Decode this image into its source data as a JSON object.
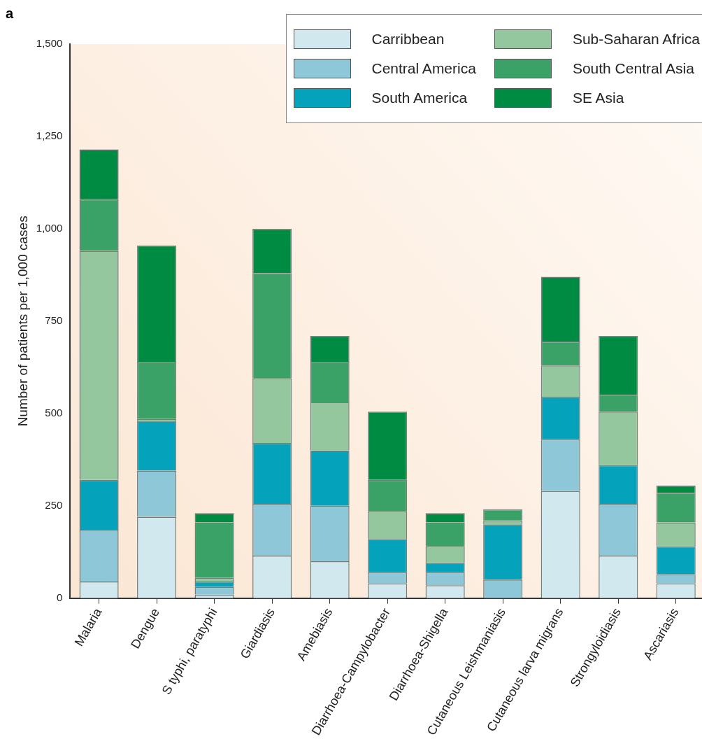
{
  "chart_data": {
    "type": "bar",
    "title": "a",
    "ylabel": "Number of patients per 1,000 cases",
    "stacked": true,
    "legend": "top right",
    "grid": false,
    "categories": [
      "Malaria",
      "Dengue",
      "S typhi, paratyphi",
      "Giardiasis",
      "Amebiasis",
      "Diarrhoea-Campylobacter",
      "Diarrhoea-Shigella",
      "Cutaneous Leishmaniasis",
      "Cutaneous larva migrans",
      "Strongyloidiasis",
      "Ascariasis"
    ],
    "ylim": [
      0,
      1500
    ],
    "yticks": [
      0,
      250,
      500,
      750,
      {
        "value": 1000,
        "label": "1,000"
      },
      {
        "value": 1250,
        "label": "1,250"
      },
      {
        "value": 1500,
        "label": "1,500"
      }
    ],
    "series": [
      {
        "name": "Carribbean",
        "color": "#d0e8ee",
        "values": [
          45,
          220,
          10,
          115,
          100,
          40,
          35,
          0,
          290,
          115,
          40
        ]
      },
      {
        "name": "Central America",
        "color": "#8ec8d8",
        "values": [
          140,
          125,
          20,
          140,
          150,
          30,
          35,
          50,
          140,
          140,
          25
        ]
      },
      {
        "name": "South America",
        "color": "#05a2bc",
        "values": [
          135,
          135,
          15,
          165,
          150,
          90,
          25,
          150,
          115,
          105,
          75
        ]
      },
      {
        "name": "Sub-Saharan Africa",
        "color": "#95c79f",
        "values": [
          620,
          5,
          10,
          175,
          130,
          75,
          45,
          10,
          85,
          145,
          65
        ]
      },
      {
        "name": "South Central Asia",
        "color": "#3aa267",
        "values": [
          140,
          155,
          150,
          285,
          110,
          85,
          65,
          30,
          65,
          45,
          80
        ]
      },
      {
        "name": "SE Asia",
        "color": "#008b43",
        "values": [
          135,
          315,
          25,
          120,
          70,
          185,
          25,
          0,
          175,
          160,
          20
        ]
      }
    ]
  }
}
